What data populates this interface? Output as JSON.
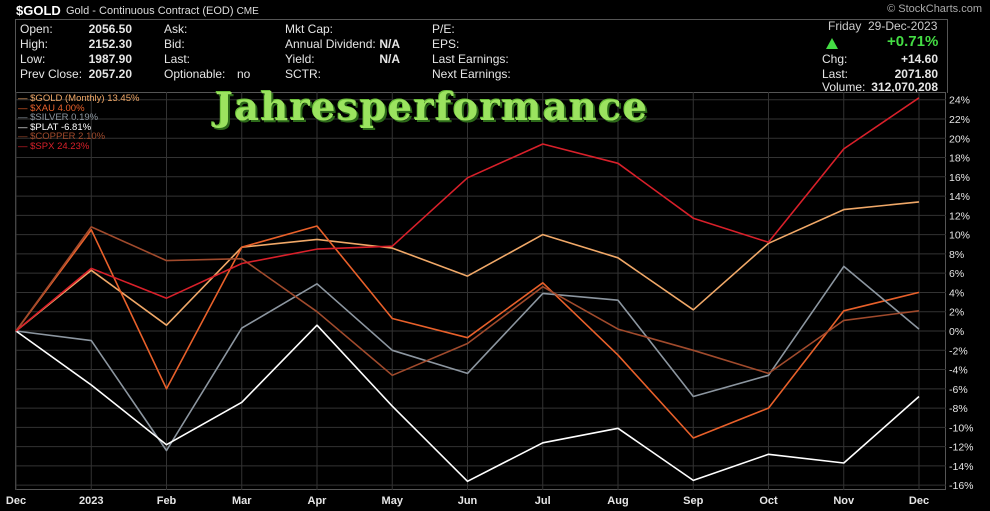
{
  "header": {
    "ticker": "$GOLD",
    "description": "Gold - Continuous Contract (EOD)",
    "exchange": "CME",
    "brand": "© StockCharts.com"
  },
  "quote": {
    "open_label": "Open:",
    "open": "2056.50",
    "high_label": "High:",
    "high": "2152.30",
    "low_label": "Low:",
    "low": "1987.90",
    "prev_close_label": "Prev Close:",
    "prev_close": "2057.20",
    "ask_label": "Ask:",
    "bid_label": "Bid:",
    "last_label": "Last:",
    "optionable_label": "Optionable:",
    "optionable": "no",
    "mktcap_label": "Mkt Cap:",
    "dividend_label": "Annual Dividend:",
    "dividend": "N/A",
    "yield_label": "Yield:",
    "yield": "N/A",
    "sctr_label": "SCTR:",
    "pe_label": "P/E:",
    "eps_label": "EPS:",
    "last_earnings_label": "Last Earnings:",
    "next_earnings_label": "Next Earnings:",
    "date_day": "Friday",
    "date": "29-Dec-2023",
    "change_pct": "+0.71%",
    "chg_label": "Chg:",
    "chg": "+14.60",
    "last_price_label": "Last:",
    "last_price": "2071.80",
    "volume_label": "Volume:",
    "volume": "312,070,208"
  },
  "watermark": "Jahresperformance",
  "colors": {
    "gold": "#f0a868",
    "xau": "#e8602a",
    "silver": "#8c96a0",
    "plat": "#ffffff",
    "copper": "#a04a2c",
    "spx": "#d8202a",
    "grid": "#333333",
    "axis_text": "#e6e6e6",
    "accent_green": "#44dd44"
  },
  "chart_data": {
    "type": "line",
    "categories": [
      "Dec",
      "2023",
      "Feb",
      "Mar",
      "Apr",
      "May",
      "Jun",
      "Jul",
      "Aug",
      "Sep",
      "Oct",
      "Nov",
      "Dec"
    ],
    "ylim": [
      -16.5,
      24.8
    ],
    "y_ticks": [
      24,
      22,
      20,
      18,
      16,
      14,
      12,
      10,
      8,
      6,
      4,
      2,
      0,
      -2,
      -4,
      -6,
      -8,
      -10,
      -12,
      -14,
      -16
    ],
    "y_tick_suffix": "%",
    "grid": true,
    "legend_position": "top-left",
    "series": [
      {
        "name": "$GOLD (Monthly) 13.45%",
        "color_key": "gold",
        "values": [
          0,
          6.3,
          0.6,
          8.7,
          9.5,
          8.6,
          5.7,
          10.0,
          7.6,
          2.2,
          9.1,
          12.6,
          13.4
        ]
      },
      {
        "name": "$XAU 4.00%",
        "color_key": "xau",
        "values": [
          0,
          10.5,
          -6.0,
          8.7,
          10.9,
          1.3,
          -0.7,
          5.0,
          -2.5,
          -11.1,
          -8.0,
          2.1,
          4.0
        ]
      },
      {
        "name": "$SILVER 0.19%",
        "color_key": "silver",
        "values": [
          0,
          -1.0,
          -12.4,
          0.3,
          4.9,
          -2.0,
          -4.4,
          3.9,
          3.2,
          -6.8,
          -4.6,
          6.7,
          0.2
        ]
      },
      {
        "name": "$PLAT -6.81%",
        "color_key": "plat",
        "values": [
          0,
          -5.6,
          -11.8,
          -7.4,
          0.6,
          -7.8,
          -15.6,
          -11.6,
          -10.1,
          -15.5,
          -12.8,
          -13.7,
          -6.8
        ]
      },
      {
        "name": "$COPPER 2.10%",
        "color_key": "copper",
        "values": [
          0,
          10.8,
          7.3,
          7.5,
          2.0,
          -4.6,
          -1.3,
          4.6,
          0.2,
          -2.0,
          -4.4,
          1.1,
          2.1
        ]
      },
      {
        "name": "$SPX 24.23%",
        "color_key": "spx",
        "values": [
          0,
          6.5,
          3.4,
          7.0,
          8.5,
          8.8,
          15.9,
          19.4,
          17.4,
          11.7,
          9.2,
          18.9,
          24.2
        ]
      }
    ]
  }
}
